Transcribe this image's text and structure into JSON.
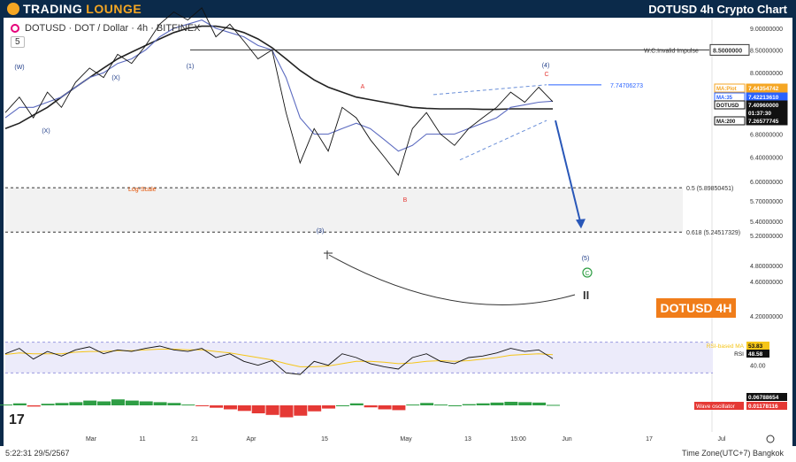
{
  "header": {
    "brand_trading": "TRADING",
    "brand_lounge": "LOUNGE",
    "title": "DOTUSD 4h Crypto Chart"
  },
  "symbol_line": "DOTUSD · DOT / Dollar · 4h · BITFINEX",
  "zoom_value": "5",
  "badge": "DOTUSD 4H",
  "pause_glyph": "II",
  "tv_logo": "17",
  "bottom": {
    "timestamp": "5:22:31 29/5/2567",
    "timezone": "Time Zone(UTC+7) Bangkok"
  },
  "annotations": {
    "invalid_impulse": "W.C.Invalid Impulse",
    "invalid_impulse_value": "8.5000000",
    "triangle_top": "7.74706273",
    "log_scale": "Log-Scale",
    "fib_05": "0.5 (5.89850451)",
    "fib_0618": "0.618 (5.24517329)"
  },
  "wave_labels": [
    {
      "text": "(W)",
      "color": "#1f3c88"
    },
    {
      "text": "(X)",
      "color": "#1f3c88"
    },
    {
      "text": "(X)",
      "color": "#1f3c88"
    },
    {
      "text": "(1)",
      "color": "#1f3c88"
    },
    {
      "text": "(3)",
      "color": "#1f3c88"
    },
    {
      "text": "A",
      "color": "#e53935"
    },
    {
      "text": "B",
      "color": "#e53935"
    },
    {
      "text": "C",
      "color": "#e53935"
    },
    {
      "text": "(4)",
      "color": "#1f3c88"
    },
    {
      "text": "(5)",
      "color": "#1f3c88"
    },
    {
      "text": "C",
      "color": "#2e9e44"
    }
  ],
  "price_tags": [
    {
      "label": "MA:Plot",
      "value": "7.44354742",
      "color": "#f5a623"
    },
    {
      "label": "MA:35",
      "value": "7.42213610",
      "color": "#2962ff"
    },
    {
      "label": "DOTUSD",
      "value": "7.40960000",
      "color": "#111111"
    },
    {
      "label": "",
      "value": "01:37:30",
      "color": "#111111"
    },
    {
      "label": "MA:200",
      "value": "7.26577745",
      "color": "#111111"
    }
  ],
  "rsi_tags": [
    {
      "label": "RSI-based MA",
      "value": "53.83",
      "color": "#f5c518"
    },
    {
      "label": "RSI",
      "value": "48.58",
      "color": "#111111"
    }
  ],
  "osc_tags": [
    {
      "label": "",
      "value": "0.06788654",
      "color": "#111111"
    },
    {
      "label": "Wave oscillator",
      "value": "0.01178116",
      "color": "#e53935"
    }
  ],
  "chart_data": {
    "type": "line",
    "log_scale": true,
    "y_axis_ticks": [
      "9.00000000",
      "8.50000000",
      "8.00000000",
      "7.60000000",
      "7.20000000",
      "6.80000000",
      "6.40000000",
      "6.00000000",
      "5.70000000",
      "5.40000000",
      "5.20000000",
      "4.80000000",
      "4.60000000",
      "4.20000000"
    ],
    "y_tick_values": [
      9.0,
      8.5,
      8.0,
      7.6,
      7.2,
      6.8,
      6.4,
      6.0,
      5.7,
      5.4,
      5.2,
      4.8,
      4.6,
      4.2
    ],
    "rsi_ticks": [
      "60.00",
      "40.00"
    ],
    "x_axis_ticks": [
      "Mar",
      "11",
      "21",
      "Apr",
      "15",
      "May",
      "13",
      "15:00",
      "Jun",
      "17",
      "Jul"
    ],
    "price_path": [
      7.2,
      7.5,
      7.1,
      7.6,
      7.3,
      7.8,
      8.1,
      7.9,
      8.4,
      8.2,
      8.6,
      9.1,
      9.4,
      9.2,
      9.5,
      8.8,
      9.1,
      8.7,
      8.3,
      8.5,
      7.2,
      6.3,
      6.9,
      6.5,
      7.3,
      7.1,
      6.7,
      6.4,
      6.1,
      6.9,
      7.2,
      6.8,
      6.6,
      6.9,
      7.1,
      7.3,
      7.6,
      7.4,
      7.7,
      7.41
    ],
    "ma200_path": [
      6.9,
      7.0,
      7.15,
      7.3,
      7.5,
      7.7,
      7.9,
      8.1,
      8.3,
      8.45,
      8.6,
      8.75,
      8.9,
      9.0,
      9.05,
      9.05,
      9.0,
      8.9,
      8.75,
      8.55,
      8.3,
      8.05,
      7.85,
      7.7,
      7.6,
      7.5,
      7.45,
      7.4,
      7.35,
      7.3,
      7.28,
      7.27,
      7.27,
      7.27,
      7.26,
      7.26,
      7.27,
      7.27,
      7.27,
      7.27
    ],
    "ma35_path": [
      7.1,
      7.3,
      7.3,
      7.4,
      7.5,
      7.7,
      7.9,
      8.0,
      8.2,
      8.3,
      8.5,
      8.8,
      9.0,
      9.1,
      9.2,
      9.0,
      8.9,
      8.8,
      8.6,
      8.5,
      7.9,
      7.1,
      6.8,
      6.8,
      6.9,
      7.0,
      6.9,
      6.7,
      6.5,
      6.6,
      6.8,
      6.8,
      6.8,
      6.9,
      7.0,
      7.1,
      7.3,
      7.35,
      7.4,
      7.42
    ],
    "projection_target": 5.24517329,
    "fib_levels": [
      5.89850451,
      5.24517329
    ],
    "invalidation_level": 8.5,
    "rsi_path": [
      55,
      62,
      48,
      58,
      52,
      60,
      64,
      55,
      60,
      58,
      62,
      65,
      60,
      58,
      62,
      50,
      55,
      45,
      40,
      46,
      30,
      28,
      45,
      40,
      55,
      50,
      42,
      38,
      35,
      50,
      55,
      45,
      42,
      50,
      52,
      56,
      62,
      58,
      60,
      48.58
    ],
    "rsi_ma_path": [
      54,
      56,
      55,
      55,
      55,
      57,
      58,
      58,
      59,
      59,
      60,
      61,
      61,
      60,
      60,
      58,
      56,
      53,
      50,
      47,
      42,
      38,
      38,
      39,
      42,
      45,
      45,
      44,
      42,
      43,
      45,
      46,
      45,
      46,
      48,
      50,
      53,
      54,
      55,
      53.83
    ],
    "osc_path": [
      0.02,
      0.05,
      -0.03,
      0.04,
      0.06,
      0.08,
      0.12,
      0.1,
      0.15,
      0.12,
      0.1,
      0.08,
      0.06,
      0.02,
      -0.02,
      -0.06,
      -0.1,
      -0.14,
      -0.2,
      -0.24,
      -0.3,
      -0.26,
      -0.15,
      -0.08,
      0.0,
      0.05,
      -0.05,
      -0.1,
      -0.12,
      0.02,
      0.06,
      0.02,
      0.0,
      0.03,
      0.05,
      0.07,
      0.09,
      0.08,
      0.07,
      0.0118
    ]
  }
}
